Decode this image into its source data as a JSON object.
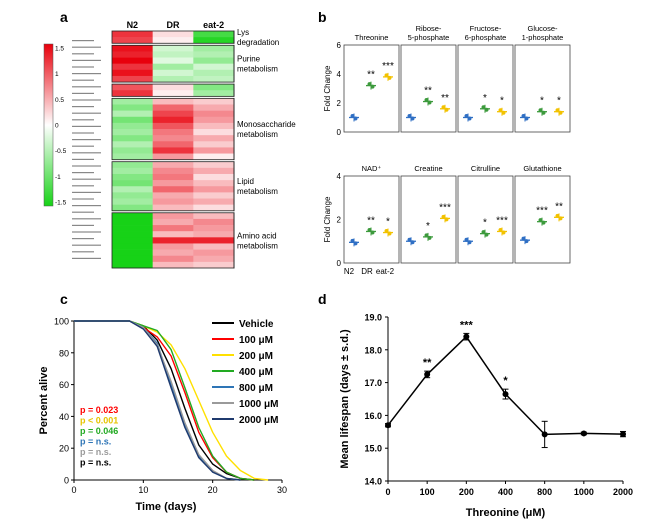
{
  "panel_labels": [
    "a",
    "b",
    "c",
    "d"
  ],
  "chart_data": [
    {
      "type": "heatmap",
      "panel": "a",
      "columns": [
        "N2",
        "DR",
        "eat-2"
      ],
      "colorbar": {
        "ticks": [
          "1.5",
          "1",
          "0.5",
          "0",
          "-0.5",
          "-1",
          "-1.5"
        ],
        "min": -1.5,
        "max": 1.5,
        "colors": {
          "high": "#e8000c",
          "mid": "#ffffff",
          "low": "#17d217"
        }
      },
      "groups": [
        {
          "label": "Lys\ndegradation",
          "rows": [
            [
              1.2,
              0.2,
              -1.2
            ],
            [
              1.1,
              0.1,
              -1.4
            ]
          ]
        },
        {
          "label": "Purine\nmetabolism",
          "rows": [
            [
              1.4,
              -0.3,
              -0.6
            ],
            [
              1.3,
              -0.4,
              -0.5
            ],
            [
              1.5,
              -0.2,
              -0.7
            ],
            [
              1.2,
              -0.6,
              -0.3
            ],
            [
              1.4,
              -0.3,
              -0.5
            ],
            [
              1.1,
              -0.5,
              -0.4
            ]
          ]
        },
        {
          "label": "",
          "rows": [
            [
              1.0,
              0.2,
              -0.8
            ],
            [
              1.2,
              0.1,
              -0.6
            ]
          ]
        },
        {
          "label": "Monosaccharide\nmetabolism",
          "rows": [
            [
              -0.6,
              0.4,
              0.3
            ],
            [
              -0.8,
              0.9,
              0.5
            ],
            [
              -0.5,
              1.1,
              0.7
            ],
            [
              -0.9,
              1.3,
              0.6
            ],
            [
              -0.7,
              1.0,
              0.4
            ],
            [
              -0.6,
              0.8,
              0.2
            ],
            [
              -0.8,
              0.7,
              0.5
            ],
            [
              -0.5,
              0.9,
              0.3
            ],
            [
              -0.7,
              1.2,
              0.6
            ],
            [
              -0.6,
              0.6,
              0.1
            ]
          ]
        },
        {
          "label": "Lipid\nmetabolism",
          "rows": [
            [
              -0.7,
              0.5,
              0.3
            ],
            [
              -0.6,
              0.7,
              0.5
            ],
            [
              -0.8,
              0.8,
              0.2
            ],
            [
              -0.9,
              0.6,
              0.4
            ],
            [
              -0.5,
              0.9,
              0.6
            ],
            [
              -0.7,
              0.5,
              0.3
            ],
            [
              -0.6,
              0.6,
              0.5
            ],
            [
              -0.8,
              0.4,
              0.2
            ]
          ]
        },
        {
          "label": "Amino acid\nmetabolism",
          "rows": [
            [
              -1.5,
              0.6,
              0.4
            ],
            [
              -1.5,
              0.5,
              0.7
            ],
            [
              -1.5,
              0.8,
              0.6
            ],
            [
              -1.5,
              0.4,
              0.5
            ],
            [
              -1.5,
              1.3,
              1.3
            ],
            [
              -1.5,
              0.6,
              0.4
            ],
            [
              -1.5,
              0.5,
              0.6
            ],
            [
              -1.5,
              0.7,
              0.5
            ],
            [
              -1.5,
              0.4,
              0.3
            ]
          ]
        }
      ]
    },
    {
      "type": "scatter",
      "panel": "b",
      "ylabel": "Fold Change",
      "groups": [
        "N2",
        "DR",
        "eat-2"
      ],
      "group_colors": [
        "#2f6fc4",
        "#3c9a3c",
        "#f2c200"
      ],
      "rows": [
        {
          "ylim": [
            0,
            6
          ],
          "yticks": [
            0,
            2,
            4,
            6
          ],
          "panels": [
            {
              "title": "Threonine",
              "means": [
                1.0,
                3.2,
                3.8
              ],
              "stars": [
                "",
                "**",
                "***"
              ]
            },
            {
              "title": "Ribose-\n5-phosphate",
              "means": [
                1.0,
                2.1,
                1.6
              ],
              "stars": [
                "",
                "**",
                "**"
              ]
            },
            {
              "title": "Fructose-\n6-phosphate",
              "means": [
                1.0,
                1.6,
                1.4
              ],
              "stars": [
                "",
                "*",
                "*"
              ]
            },
            {
              "title": "Glucose-\n1-phosphate",
              "means": [
                1.0,
                1.4,
                1.4
              ],
              "stars": [
                "",
                "*",
                "*"
              ]
            }
          ]
        },
        {
          "ylim": [
            0,
            4
          ],
          "yticks": [
            0,
            2,
            4
          ],
          "panels": [
            {
              "title": "NAD⁺",
              "means": [
                0.95,
                1.45,
                1.4
              ],
              "stars": [
                "",
                "**",
                "*"
              ]
            },
            {
              "title": "Creatine",
              "means": [
                1.0,
                1.2,
                2.05
              ],
              "stars": [
                "",
                "*",
                "***"
              ]
            },
            {
              "title": "Citrulline",
              "means": [
                1.0,
                1.35,
                1.45
              ],
              "stars": [
                "",
                "*",
                "***"
              ]
            },
            {
              "title": "Glutathione",
              "means": [
                1.05,
                1.9,
                2.1
              ],
              "stars": [
                "",
                "***",
                "**"
              ]
            }
          ]
        }
      ]
    },
    {
      "type": "line",
      "panel": "c",
      "xlabel": "Time (days)",
      "ylabel": "Percent alive",
      "xlim": [
        0,
        30
      ],
      "ylim": [
        0,
        100
      ],
      "xticks": [
        0,
        10,
        20,
        30
      ],
      "yticks": [
        0,
        20,
        40,
        60,
        80,
        100
      ],
      "series": [
        {
          "name": "Vehicle",
          "color": "#000000",
          "x": [
            0,
            8,
            10,
            12,
            14,
            16,
            18,
            20,
            22,
            24,
            26
          ],
          "y": [
            100,
            100,
            97,
            88,
            70,
            45,
            22,
            10,
            4,
            1,
            0
          ]
        },
        {
          "name": "100 μM",
          "color": "#ff0000",
          "x": [
            0,
            8,
            10,
            12,
            14,
            16,
            18,
            20,
            22,
            24,
            26
          ],
          "y": [
            100,
            100,
            96,
            90,
            78,
            55,
            30,
            14,
            5,
            1,
            0
          ]
        },
        {
          "name": "200 μM",
          "color": "#ffe000",
          "x": [
            0,
            8,
            10,
            12,
            14,
            16,
            18,
            20,
            22,
            24,
            26,
            28
          ],
          "y": [
            100,
            100,
            97,
            93,
            85,
            70,
            50,
            30,
            15,
            6,
            1,
            0
          ]
        },
        {
          "name": "400 μM",
          "color": "#22aa22",
          "x": [
            0,
            8,
            10,
            12,
            14,
            16,
            18,
            20,
            22,
            24,
            26
          ],
          "y": [
            100,
            100,
            97,
            94,
            82,
            58,
            33,
            15,
            5,
            1,
            0
          ]
        },
        {
          "name": "800 μM",
          "color": "#2e75b6",
          "x": [
            0,
            8,
            10,
            12,
            14,
            16,
            18,
            20,
            22,
            24
          ],
          "y": [
            100,
            100,
            96,
            86,
            60,
            35,
            15,
            5,
            1,
            0
          ]
        },
        {
          "name": "1000 μM",
          "color": "#9a9a9a",
          "x": [
            0,
            8,
            10,
            12,
            14,
            16,
            18,
            20,
            22,
            24
          ],
          "y": [
            100,
            100,
            96,
            85,
            62,
            36,
            16,
            6,
            1,
            0
          ]
        },
        {
          "name": "2000 μM",
          "color": "#1f3a6e",
          "x": [
            0,
            8,
            10,
            12,
            14,
            16,
            18,
            20,
            22,
            24
          ],
          "y": [
            100,
            100,
            95,
            84,
            58,
            33,
            14,
            5,
            1,
            0
          ]
        }
      ],
      "pvalues": [
        {
          "text": "p = 0.023",
          "color": "#ff0000"
        },
        {
          "text": "p < 0.001",
          "color": "#e6c400"
        },
        {
          "text": "p = 0.046",
          "color": "#22aa22"
        },
        {
          "text": "p = n.s.",
          "color": "#2e75b6"
        },
        {
          "text": "p = n.s.",
          "color": "#9a9a9a"
        },
        {
          "text": "p = n.s.",
          "color": "#000000"
        }
      ]
    },
    {
      "type": "line",
      "panel": "d",
      "xlabel": "Threonine (μM)",
      "ylabel": "Mean lifespan (days ± s.d.)",
      "categories": [
        "0",
        "100",
        "200",
        "400",
        "800",
        "1000",
        "2000"
      ],
      "values": [
        15.7,
        17.25,
        18.4,
        16.65,
        15.42,
        15.45,
        15.43
      ],
      "errors": [
        0.05,
        0.1,
        0.1,
        0.15,
        0.4,
        0.04,
        0.08
      ],
      "stars": [
        "",
        "**",
        "***",
        "*",
        "",
        "",
        ""
      ],
      "ylim": [
        14.0,
        19.0
      ],
      "yticks": [
        "14.0",
        "15.0",
        "16.0",
        "17.0",
        "18.0",
        "19.0"
      ]
    }
  ]
}
